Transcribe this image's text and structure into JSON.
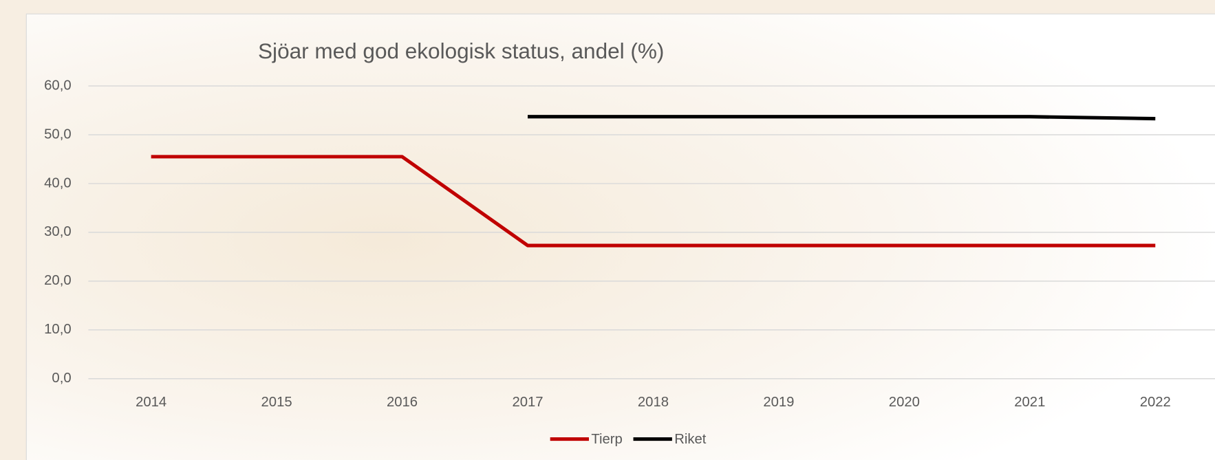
{
  "chart_data": {
    "type": "line",
    "title": "Sjöar med god ekologisk status, andel (%)",
    "categories": [
      "2014",
      "2015",
      "2016",
      "2017",
      "2018",
      "2019",
      "2020",
      "2021",
      "2022"
    ],
    "series": [
      {
        "name": "Tierp",
        "color": "#c00000",
        "values": [
          45.5,
          45.5,
          45.5,
          27.3,
          27.3,
          27.3,
          27.3,
          27.3,
          27.3
        ]
      },
      {
        "name": "Riket",
        "color": "#000000",
        "values": [
          null,
          null,
          null,
          53.7,
          53.7,
          53.7,
          53.7,
          53.7,
          53.3
        ]
      }
    ],
    "ylim": [
      0,
      60
    ],
    "yticks": [
      {
        "value": 0,
        "label": "0,0"
      },
      {
        "value": 10,
        "label": "10,0"
      },
      {
        "value": 20,
        "label": "20,0"
      },
      {
        "value": 30,
        "label": "30,0"
      },
      {
        "value": 40,
        "label": "40,0"
      },
      {
        "value": 50,
        "label": "50,0"
      },
      {
        "value": 60,
        "label": "60,0"
      }
    ],
    "grid": true,
    "legend": "bottom"
  }
}
